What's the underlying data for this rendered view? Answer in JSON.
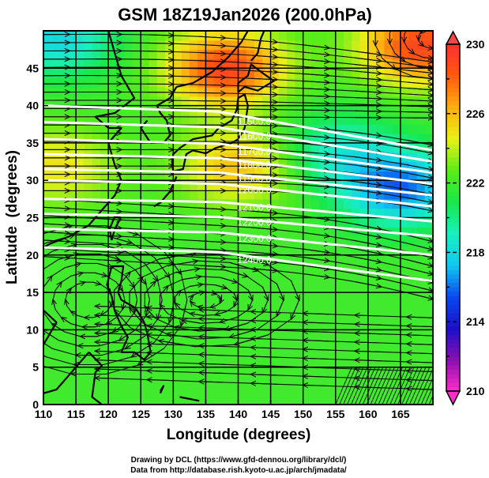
{
  "chart_data": {
    "type": "heatmap",
    "title": "GSM 18Z19Jan2026 (200.0hPa)",
    "xlabel": "Longitude (degrees)",
    "ylabel": "Latitude  (degrees)",
    "xlim": [
      110,
      170
    ],
    "ylim": [
      0,
      50
    ],
    "x_ticks": [
      "110",
      "115",
      "120",
      "125",
      "130",
      "135",
      "140",
      "145",
      "150",
      "155",
      "160",
      "165"
    ],
    "y_ticks": [
      "0",
      "5",
      "10",
      "15",
      "20",
      "25",
      "30",
      "35",
      "40",
      "45"
    ],
    "x_tick_values": [
      110,
      115,
      120,
      125,
      130,
      135,
      140,
      145,
      150,
      155,
      160,
      165
    ],
    "y_tick_values": [
      0,
      5,
      10,
      15,
      20,
      25,
      30,
      35,
      40,
      45
    ],
    "grid": true,
    "colorbar": {
      "range": [
        210,
        230
      ],
      "tick_labels": [
        "230",
        "226",
        "222",
        "218",
        "214",
        "210"
      ],
      "tick_values": [
        230,
        226,
        222,
        218,
        214,
        210
      ],
      "extend": "both",
      "colors": [
        "#ff2dc8",
        "#8a10b0",
        "#1a10c8",
        "#0a4af0",
        "#12c8f0",
        "#18f0c0",
        "#18e84a",
        "#5cec18",
        "#e8f018",
        "#ffb010",
        "#ff5a10",
        "#ff3030"
      ],
      "over_color": "#f04848",
      "under_color": "#ff2dc8"
    },
    "field_description_values": {
      "hot_spots": [
        {
          "lon": 138,
          "lat": 45,
          "value": 229
        },
        {
          "lon": 168,
          "lat": 48,
          "value": 229
        },
        {
          "lon": 140,
          "lat": 32,
          "value": 226
        },
        {
          "lon": 112,
          "lat": 32,
          "value": 225
        }
      ],
      "cold_spots": [
        {
          "lon": 112,
          "lat": 49,
          "value": 218
        },
        {
          "lon": 165,
          "lat": 29,
          "value": 216
        },
        {
          "lon": 155,
          "lat": 34,
          "value": 219
        }
      ],
      "background_value": 222
    },
    "contours": [
      {
        "label": "11500.0",
        "lat_west": 40.0,
        "lat_east": 34.0
      },
      {
        "label": "11600.0",
        "lat_west": 37.8,
        "lat_east": 32.5
      },
      {
        "label": "11700.0",
        "lat_west": 35.5,
        "lat_east": 31.0
      },
      {
        "label": "11800.0",
        "lat_west": 33.5,
        "lat_east": 29.5
      },
      {
        "label": "11900.0",
        "lat_west": 31.5,
        "lat_east": 28.0
      },
      {
        "label": "12000.0",
        "lat_west": 30.0,
        "lat_east": 26.5
      },
      {
        "label": "12100.0",
        "lat_west": 27.5,
        "lat_east": 24.5
      },
      {
        "label": "12200.0",
        "lat_west": 25.5,
        "lat_east": 22.5
      },
      {
        "label": "12300.0",
        "lat_west": 23.5,
        "lat_east": 20.0
      },
      {
        "label": "12400.0",
        "lat_west": 21.0,
        "lat_east": 16.5
      }
    ]
  },
  "credits": {
    "line1": "Drawing by DCL (https://www.gfd-dennou.org/library/dcl/)",
    "line2": "Data from http://database.rish.kyoto-u.ac.jp/arch/jmadata/"
  }
}
